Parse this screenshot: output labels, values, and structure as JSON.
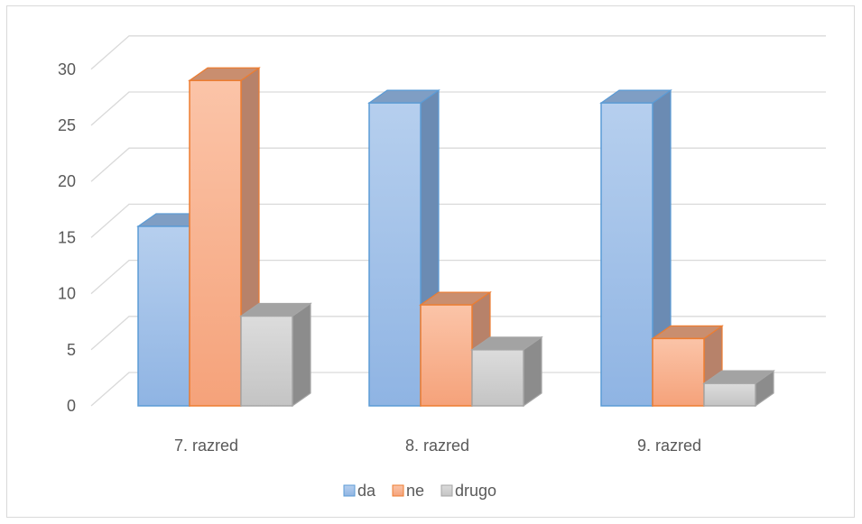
{
  "chart_data": {
    "type": "bar",
    "title": "",
    "xlabel": "",
    "ylabel": "",
    "categories": [
      "7. razred",
      "8. razred",
      "9. razred"
    ],
    "series": [
      {
        "name": "da",
        "values": [
          16,
          27,
          27
        ]
      },
      {
        "name": "ne",
        "values": [
          29,
          9,
          6
        ]
      },
      {
        "name": "drugo",
        "values": [
          8,
          5,
          2
        ]
      }
    ],
    "ylim": [
      0,
      30
    ],
    "yticks": [
      "0",
      "5",
      "10",
      "15",
      "20",
      "25",
      "30"
    ],
    "grid": true,
    "style": "3d-clustered-column",
    "legend_position": "bottom",
    "colors": {
      "da": {
        "top": "#b6cfee",
        "bottom": "#8fb4e3",
        "side": "#6b8bb3",
        "cap": "#7f9ec4",
        "stroke": "#5b9bd5"
      },
      "ne": {
        "top": "#fbc4a8",
        "bottom": "#f5a27a",
        "side": "#b7826a",
        "cap": "#c98e6f",
        "stroke": "#ed7d31"
      },
      "drugo": {
        "top": "#dcdcdc",
        "bottom": "#c4c4c4",
        "side": "#8c8c8c",
        "cap": "#a3a3a3",
        "stroke": "#a5a5a5"
      }
    }
  }
}
